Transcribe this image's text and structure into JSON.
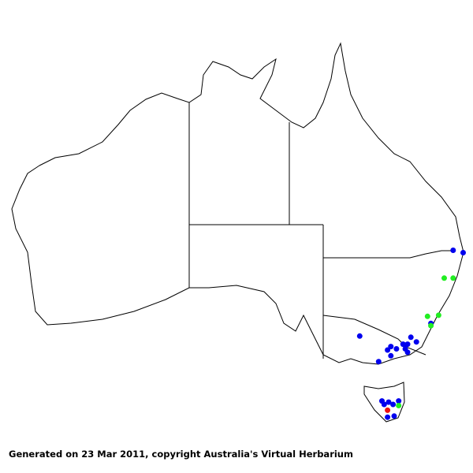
{
  "footer": {
    "text": "Generated on 23 Mar 2011, copyright Australia's Virtual Herbarium"
  },
  "map": {
    "region": "Australia",
    "colors": {
      "outline": "#000000",
      "background": "#ffffff"
    },
    "marker_colors": {
      "blue": "#0000ee",
      "green": "#22ee22",
      "red": "#ee1111"
    },
    "records": [
      {
        "lon": 152.7,
        "lat": -28.9,
        "color": "blue"
      },
      {
        "lon": 153.6,
        "lat": -29.1,
        "color": "blue"
      },
      {
        "lon": 150.7,
        "lat": -35.2,
        "color": "blue"
      },
      {
        "lon": 144.3,
        "lat": -36.3,
        "color": "blue"
      },
      {
        "lon": 148.9,
        "lat": -36.4,
        "color": "blue"
      },
      {
        "lon": 149.4,
        "lat": -36.8,
        "color": "blue"
      },
      {
        "lon": 148.6,
        "lat": -37.0,
        "color": "blue"
      },
      {
        "lon": 148.2,
        "lat": -37.0,
        "color": "blue"
      },
      {
        "lon": 147.6,
        "lat": -37.4,
        "color": "blue"
      },
      {
        "lon": 147.1,
        "lat": -37.2,
        "color": "blue"
      },
      {
        "lon": 146.8,
        "lat": -37.5,
        "color": "blue"
      },
      {
        "lon": 148.4,
        "lat": -37.4,
        "color": "blue"
      },
      {
        "lon": 148.6,
        "lat": -37.7,
        "color": "blue"
      },
      {
        "lon": 147.1,
        "lat": -38.0,
        "color": "blue"
      },
      {
        "lon": 146.0,
        "lat": -38.5,
        "color": "blue"
      },
      {
        "lon": 146.3,
        "lat": -41.9,
        "color": "blue"
      },
      {
        "lon": 146.9,
        "lat": -42.0,
        "color": "blue"
      },
      {
        "lon": 147.3,
        "lat": -42.2,
        "color": "blue"
      },
      {
        "lon": 147.8,
        "lat": -41.9,
        "color": "blue"
      },
      {
        "lon": 146.5,
        "lat": -42.2,
        "color": "blue"
      },
      {
        "lon": 146.8,
        "lat": -43.3,
        "color": "blue"
      },
      {
        "lon": 147.4,
        "lat": -43.2,
        "color": "blue"
      },
      {
        "lon": 151.9,
        "lat": -31.3,
        "color": "green"
      },
      {
        "lon": 152.7,
        "lat": -31.3,
        "color": "green"
      },
      {
        "lon": 150.4,
        "lat": -34.6,
        "color": "green"
      },
      {
        "lon": 151.4,
        "lat": -34.5,
        "color": "green"
      },
      {
        "lon": 150.7,
        "lat": -35.4,
        "color": "green"
      },
      {
        "lon": 147.8,
        "lat": -42.3,
        "color": "green"
      },
      {
        "lon": 146.8,
        "lat": -42.7,
        "color": "red"
      }
    ]
  }
}
